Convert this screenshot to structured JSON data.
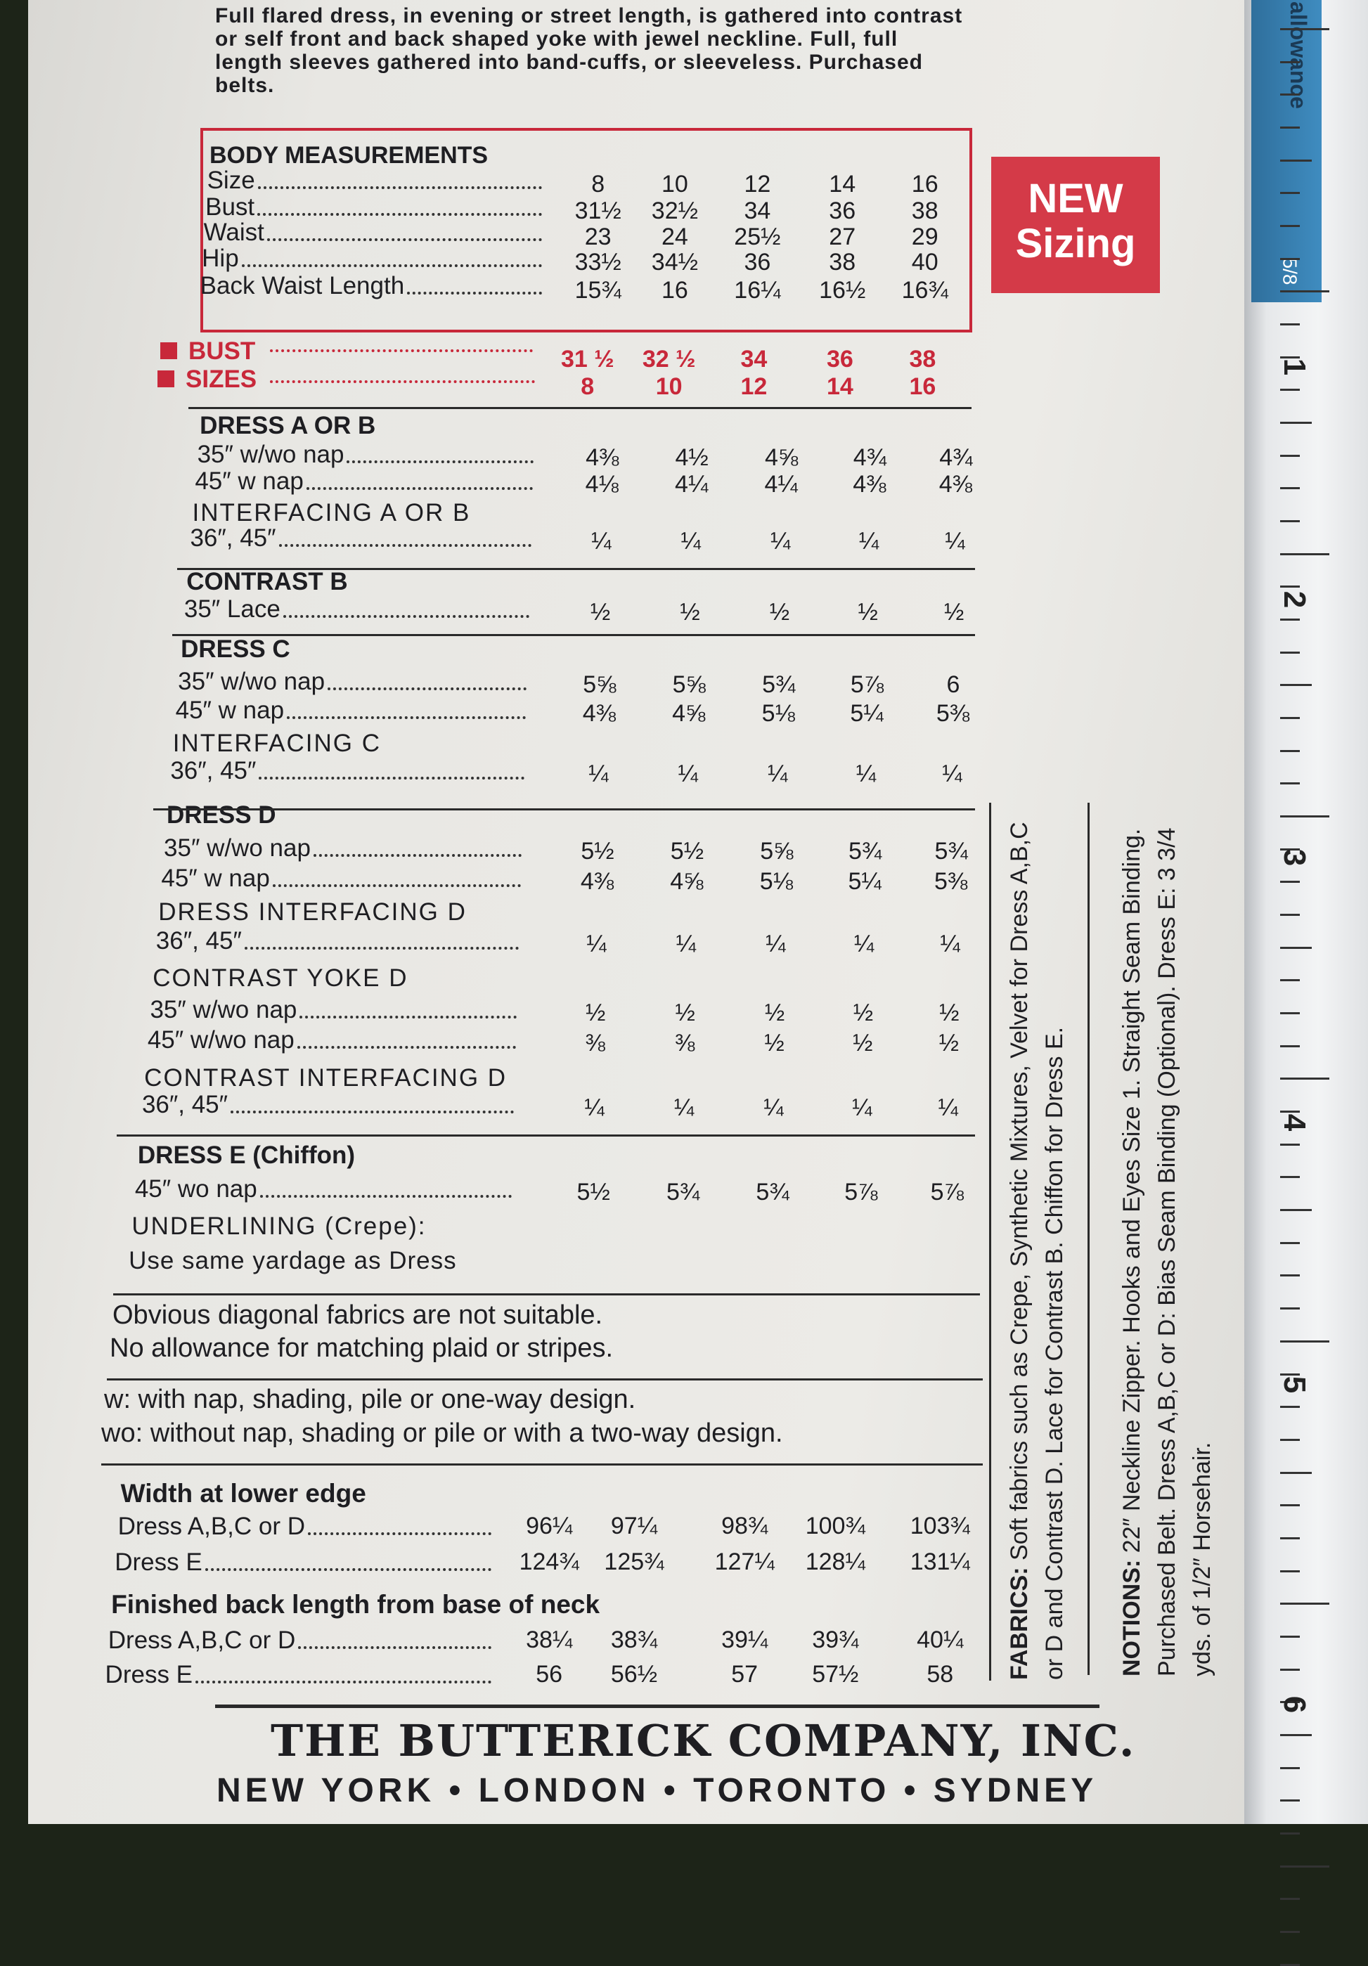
{
  "intro": "Full flared dress, in evening or street length, is gathered into contrast or self front and back shaped yoke with jewel neckline. Full, full length sleeves gathered into band-cuffs, or sleeveless. Purchased belts.",
  "body_measurements": {
    "title": "BODY MEASUREMENTS",
    "rows": [
      {
        "label": "Size",
        "values": [
          "8",
          "10",
          "12",
          "14",
          "16"
        ]
      },
      {
        "label": "Bust",
        "values": [
          "31½",
          "32½",
          "34",
          "36",
          "38"
        ]
      },
      {
        "label": "Waist",
        "values": [
          "23",
          "24",
          "25½",
          "27",
          "29"
        ]
      },
      {
        "label": "Hip",
        "values": [
          "33½",
          "34½",
          "36",
          "38",
          "40"
        ]
      },
      {
        "label": "Back Waist Length",
        "values": [
          "15¾",
          "16",
          "16¼",
          "16½",
          "16¾"
        ]
      }
    ]
  },
  "badge": {
    "line1": "NEW",
    "line2": "Sizing",
    "color": "#d43a48"
  },
  "bust_sizes": {
    "bust_label": "BUST",
    "bust": [
      "31 ½",
      "32 ½",
      "34",
      "36",
      "38"
    ],
    "sizes_label": "SIZES",
    "sizes": [
      "8",
      "10",
      "12",
      "14",
      "16"
    ]
  },
  "yardage": [
    {
      "type": "heading",
      "label": "DRESS A OR B"
    },
    {
      "type": "row",
      "label": "35″ w/wo nap",
      "values": [
        "4⅜",
        "4½",
        "4⅝",
        "4¾",
        "4¾"
      ]
    },
    {
      "type": "row",
      "label": "45″ w nap",
      "values": [
        "4⅛",
        "4¼",
        "4¼",
        "4⅜",
        "4⅜"
      ]
    },
    {
      "type": "subheading",
      "label": "INTERFACING A OR B"
    },
    {
      "type": "row",
      "label": "36″, 45″",
      "values": [
        "¼",
        "¼",
        "¼",
        "¼",
        "¼"
      ]
    },
    {
      "type": "heading",
      "label": "CONTRAST B"
    },
    {
      "type": "row",
      "label": "35″ Lace",
      "values": [
        "½",
        "½",
        "½",
        "½",
        "½"
      ]
    },
    {
      "type": "heading",
      "label": "DRESS C"
    },
    {
      "type": "row",
      "label": "35″ w/wo nap",
      "values": [
        "5⅝",
        "5⅝",
        "5¾",
        "5⅞",
        "6"
      ]
    },
    {
      "type": "row",
      "label": "45″ w nap",
      "values": [
        "4⅜",
        "4⅝",
        "5⅛",
        "5¼",
        "5⅜"
      ]
    },
    {
      "type": "subheading",
      "label": "INTERFACING C"
    },
    {
      "type": "row",
      "label": "36″, 45″",
      "values": [
        "¼",
        "¼",
        "¼",
        "¼",
        "¼"
      ]
    },
    {
      "type": "heading",
      "label": "DRESS D"
    },
    {
      "type": "row",
      "label": "35″ w/wo nap",
      "values": [
        "5½",
        "5½",
        "5⅝",
        "5¾",
        "5¾"
      ]
    },
    {
      "type": "row",
      "label": "45″ w nap",
      "values": [
        "4⅜",
        "4⅝",
        "5⅛",
        "5¼",
        "5⅜"
      ]
    },
    {
      "type": "subheading",
      "label": "DRESS INTERFACING D"
    },
    {
      "type": "row",
      "label": "36″, 45″",
      "values": [
        "¼",
        "¼",
        "¼",
        "¼",
        "¼"
      ]
    },
    {
      "type": "subheading",
      "label": "CONTRAST YOKE D"
    },
    {
      "type": "row",
      "label": "35″ w/wo nap",
      "values": [
        "½",
        "½",
        "½",
        "½",
        "½"
      ]
    },
    {
      "type": "row",
      "label": "45″ w/wo nap",
      "values": [
        "⅜",
        "⅜",
        "½",
        "½",
        "½"
      ]
    },
    {
      "type": "subheading",
      "label": "CONTRAST INTERFACING D"
    },
    {
      "type": "row",
      "label": "36″, 45″",
      "values": [
        "¼",
        "¼",
        "¼",
        "¼",
        "¼"
      ]
    },
    {
      "type": "heading",
      "label": "DRESS E (Chiffon)"
    },
    {
      "type": "row",
      "label": "45″ wo nap",
      "values": [
        "5½",
        "5¾",
        "5¾",
        "5⅞",
        "5⅞"
      ]
    },
    {
      "type": "subheading",
      "label": "UNDERLINING (Crepe):"
    },
    {
      "type": "text",
      "label": "Use same yardage as Dress"
    }
  ],
  "notes": [
    "Obvious diagonal fabrics are not suitable.",
    "No allowance for matching plaid or stripes.",
    "w: with nap, shading, pile or one-way design.",
    "wo: without nap, shading or pile or with a two-way design."
  ],
  "finished": [
    {
      "type": "heading",
      "label": "Width at lower edge"
    },
    {
      "type": "row",
      "label": "Dress A,B,C or D",
      "values": [
        "96¼",
        "97¼",
        "98¾",
        "100¾",
        "103¾"
      ]
    },
    {
      "type": "row",
      "label": "Dress E",
      "values": [
        "124¾",
        "125¾",
        "127¼",
        "128¼",
        "131¼"
      ]
    },
    {
      "type": "heading",
      "label": "Finished back length from base of neck"
    },
    {
      "type": "row",
      "label": "Dress A,B,C or D",
      "values": [
        "38¼",
        "38¾",
        "39¼",
        "39¾",
        "40¼"
      ]
    },
    {
      "type": "row",
      "label": "Dress E",
      "values": [
        "56",
        "56½",
        "57",
        "57½",
        "58"
      ]
    }
  ],
  "fabrics": {
    "label": "FABRICS:",
    "text": "Soft fabrics such as Crepe, Synthetic Mixtures, Velvet for Dress A,B,C or D and Contrast D. Lace for Contrast B. Chiffon for Dress E."
  },
  "notions": {
    "label": "NOTIONS:",
    "text": "22″ Neckline Zipper. Hooks and Eyes Size 1. Straight Seam Binding. Purchased Belt. Dress A,B,C or D: Bias Seam Binding (Optional). Dress E: 3 3/4 yds. of 1/2″ Horsehair."
  },
  "footer": {
    "company": "THE BUTTERICK COMPANY, INC.",
    "cities": "NEW YORK • LONDON • TORONTO • SYDNEY"
  },
  "ruler": {
    "label": "allowance",
    "fraction": "5/8",
    "numbers": [
      "1",
      "2",
      "3",
      "4",
      "5",
      "6"
    ]
  },
  "colors": {
    "accent_red": "#c8283a",
    "ruler_blue": "#3f8cc0"
  }
}
